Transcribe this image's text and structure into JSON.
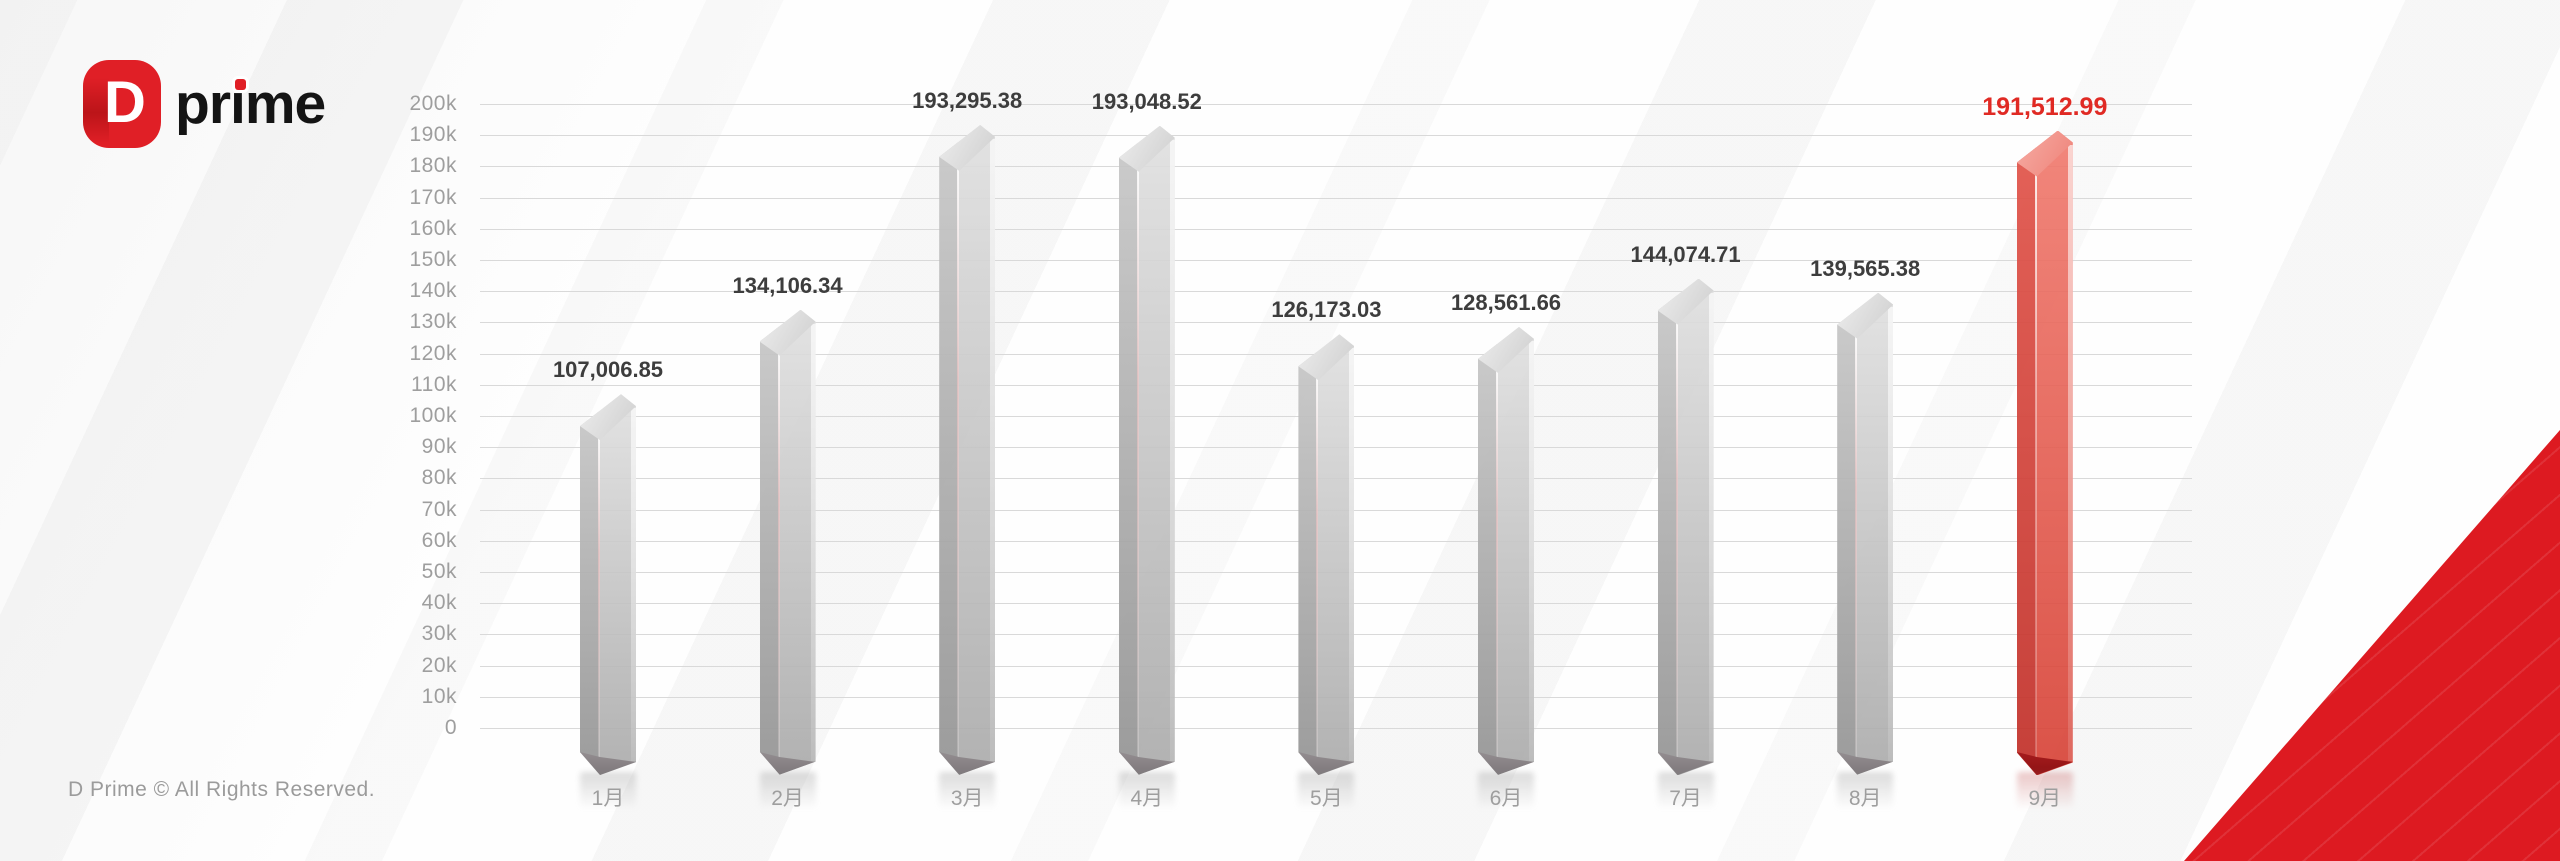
{
  "logo": {
    "mark_letter": "D",
    "name": "prime"
  },
  "footer": {
    "copyright": "D Prime © All Rights Reserved."
  },
  "chart_data": {
    "type": "bar",
    "title": "",
    "categories": [
      "1月",
      "2月",
      "3月",
      "4月",
      "5月",
      "6月",
      "7月",
      "8月",
      "9月"
    ],
    "values": [
      107006.85,
      134106.34,
      193295.38,
      193048.52,
      126173.03,
      128561.66,
      144074.71,
      139565.38,
      191512.99
    ],
    "value_labels": [
      "107,006.85",
      "134,106.34",
      "193,295.38",
      "193,048.52",
      "126,173.03",
      "128,561.66",
      "144,074.71",
      "139,565.38",
      "191,512.99"
    ],
    "highlight_index": 8,
    "y_ticks": [
      "200k",
      "190k",
      "180k",
      "170k",
      "160k",
      "150k",
      "140k",
      "130k",
      "120k",
      "110k",
      "100k",
      "90k",
      "80k",
      "70k",
      "60k",
      "50k",
      "40k",
      "30k",
      "20k",
      "10k",
      "0"
    ],
    "ylim": [
      0,
      200000
    ],
    "grid": true,
    "legend": null,
    "colors": {
      "gridline": "#d9d9d9",
      "axis_text": "#9e9e9e",
      "value_label": "#3d3d3d",
      "highlight_value_label": "#e02a24",
      "corner_triangle": "#dd1a21",
      "logo_red": "#e01f26",
      "logo_text": "#141414",
      "copyright_text": "#9b9b9b",
      "bar_gray": {
        "face_left_top": "#c9c9c9",
        "face_left_bottom": "#949494",
        "face_right_top": "#e0e0e0",
        "face_right_bottom": "#a9a9a9",
        "cap_top_a": "#eeeeee",
        "cap_top_b": "#cdcdcd",
        "cap_bottom_a": "#9b9598",
        "cap_bottom_b": "#7d777a",
        "seam": "rgba(246,196,196,0.55)"
      },
      "bar_red": {
        "face_left_top": "#e2564c",
        "face_left_bottom": "#c1312a",
        "face_right_top": "#f17a6e",
        "face_right_bottom": "#d63f33",
        "cap_top_a": "#f6aca4",
        "cap_top_b": "#ee8177",
        "cap_bottom_a": "#ae1f20",
        "cap_bottom_b": "#8c1214",
        "seam": "rgba(255,255,255,0.45)"
      }
    }
  }
}
